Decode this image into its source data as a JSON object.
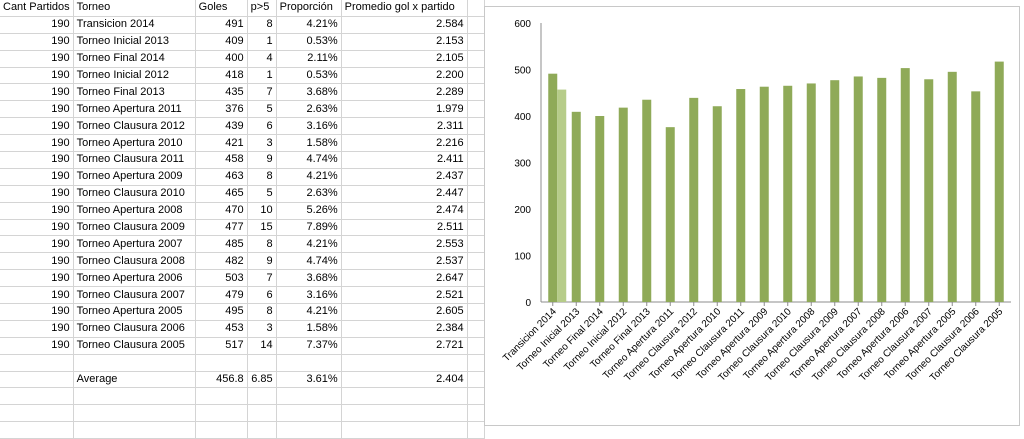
{
  "table": {
    "headers": [
      "Cant Partidos",
      "Torneo",
      "Goles",
      "p>5",
      "Proporción",
      "Promedio gol x partido"
    ],
    "rows": [
      [
        "190",
        "Transicion 2014",
        "491",
        "8",
        "4.21%",
        "2.584"
      ],
      [
        "190",
        "Torneo Inicial 2013",
        "409",
        "1",
        "0.53%",
        "2.153"
      ],
      [
        "190",
        "Torneo Final 2014",
        "400",
        "4",
        "2.11%",
        "2.105"
      ],
      [
        "190",
        "Torneo Inicial 2012",
        "418",
        "1",
        "0.53%",
        "2.200"
      ],
      [
        "190",
        "Torneo Final 2013",
        "435",
        "7",
        "3.68%",
        "2.289"
      ],
      [
        "190",
        "Torneo Apertura 2011",
        "376",
        "5",
        "2.63%",
        "1.979"
      ],
      [
        "190",
        "Torneo Clausura 2012",
        "439",
        "6",
        "3.16%",
        "2.311"
      ],
      [
        "190",
        "Torneo Apertura 2010",
        "421",
        "3",
        "1.58%",
        "2.216"
      ],
      [
        "190",
        "Torneo Clausura 2011",
        "458",
        "9",
        "4.74%",
        "2.411"
      ],
      [
        "190",
        "Torneo Apertura 2009",
        "463",
        "8",
        "4.21%",
        "2.437"
      ],
      [
        "190",
        "Torneo Clausura 2010",
        "465",
        "5",
        "2.63%",
        "2.447"
      ],
      [
        "190",
        "Torneo Apertura 2008",
        "470",
        "10",
        "5.26%",
        "2.474"
      ],
      [
        "190",
        "Torneo Clausura 2009",
        "477",
        "15",
        "7.89%",
        "2.511"
      ],
      [
        "190",
        "Torneo Apertura 2007",
        "485",
        "8",
        "4.21%",
        "2.553"
      ],
      [
        "190",
        "Torneo Clausura 2008",
        "482",
        "9",
        "4.74%",
        "2.537"
      ],
      [
        "190",
        "Torneo Apertura 2006",
        "503",
        "7",
        "3.68%",
        "2.647"
      ],
      [
        "190",
        "Torneo Clausura 2007",
        "479",
        "6",
        "3.16%",
        "2.521"
      ],
      [
        "190",
        "Torneo Apertura 2005",
        "495",
        "8",
        "4.21%",
        "2.605"
      ],
      [
        "190",
        "Torneo Clausura 2006",
        "453",
        "3",
        "1.58%",
        "2.384"
      ],
      [
        "190",
        "Torneo Clausura 2005",
        "517",
        "14",
        "7.37%",
        "2.721"
      ]
    ],
    "average": {
      "label": "Average",
      "goles": "456.8",
      "p5": "6.85",
      "proporcion": "3.61%",
      "promedio": "2.404"
    }
  },
  "chart_data": {
    "type": "bar",
    "title": "",
    "xlabel": "",
    "ylabel": "",
    "ylim": [
      0,
      600
    ],
    "yticks": [
      "0",
      "100",
      "200",
      "300",
      "400",
      "500",
      "600"
    ],
    "categories": [
      "Transicion 2014",
      "Torneo Inicial 2013",
      "Torneo Final 2014",
      "Torneo Inicial 2012",
      "Torneo Final 2013",
      "Torneo Apertura 2011",
      "Torneo Clausura 2012",
      "Torneo Apertura 2010",
      "Torneo Clausura 2011",
      "Torneo Apertura 2009",
      "Torneo Clausura 2010",
      "Torneo Apertura 2008",
      "Torneo Clausura 2009",
      "Torneo Apertura 2007",
      "Torneo Clausura 2008",
      "Torneo Apertura 2006",
      "Torneo Clausura 2007",
      "Torneo Apertura 2005",
      "Torneo Clausura 2006",
      "Torneo Clausura 2005"
    ],
    "series": [
      {
        "name": "Goles",
        "values": [
          491,
          409,
          400,
          418,
          435,
          376,
          439,
          421,
          458,
          463,
          465,
          470,
          477,
          485,
          482,
          503,
          479,
          495,
          453,
          517
        ]
      }
    ],
    "highlight": {
      "category_index": 0,
      "value": 456.8
    },
    "grid": false,
    "legend": "none"
  },
  "colors": {
    "bar": "#8faa58",
    "highlight_bar": "#b6cc89",
    "axis": "#8c8c8c"
  }
}
